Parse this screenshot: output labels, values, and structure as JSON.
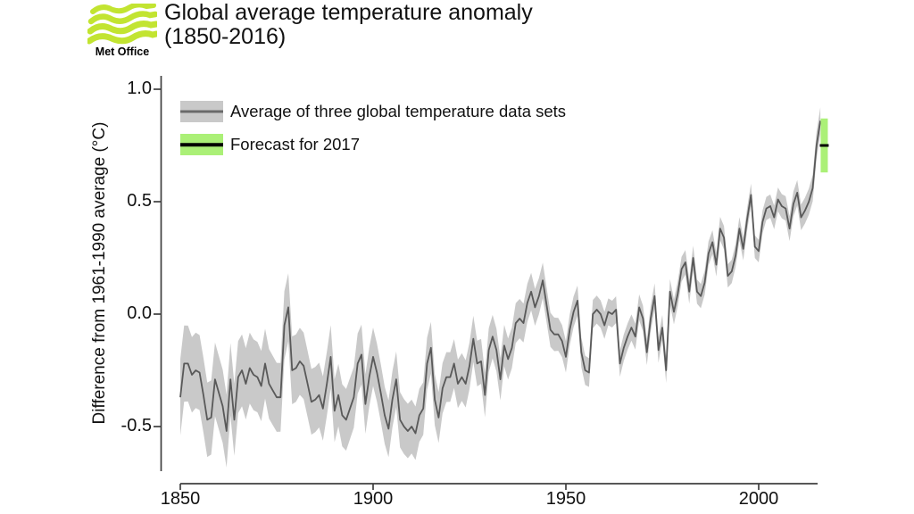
{
  "header": {
    "logo": {
      "brand": "Met Office",
      "icon": "met-office-waves-icon",
      "green": "#c2e431"
    },
    "title_line1": "Global average temperature anomaly",
    "title_line2": "(1850-2016)"
  },
  "chart_data": {
    "type": "line",
    "title": "Global average temperature anomaly (1850-2016)",
    "xlabel": "",
    "ylabel": "Difference from 1961-1990 average (°C)",
    "x_ticks": [
      "1850",
      "1900",
      "1950",
      "2000"
    ],
    "y_ticks": [
      "1.0",
      "0.5",
      "0.0",
      "-0.5"
    ],
    "xlim": [
      1848,
      2018.5
    ],
    "ylim": [
      -0.75,
      1.05
    ],
    "grid": false,
    "axis_color": "#3f3f3f",
    "legend": {
      "position": "top-left",
      "entries": [
        {
          "label": "Average of three global temperature data sets",
          "band_color": "#c9c9c9",
          "line_color": "#6a6a6a"
        },
        {
          "label": "Forecast for 2017",
          "band_color": "#abf077",
          "line_color": "#000000"
        }
      ]
    },
    "series": [
      {
        "name": "Average of three global temperature data sets",
        "start_year": 1850,
        "end_year": 2016,
        "line_color": "#595959",
        "band_color": "#c9c9c9",
        "values": [
          -0.37,
          -0.22,
          -0.22,
          -0.27,
          -0.25,
          -0.26,
          -0.36,
          -0.47,
          -0.46,
          -0.29,
          -0.35,
          -0.41,
          -0.52,
          -0.29,
          -0.47,
          -0.28,
          -0.25,
          -0.31,
          -0.24,
          -0.27,
          -0.28,
          -0.32,
          -0.22,
          -0.31,
          -0.34,
          -0.37,
          -0.37,
          -0.05,
          0.03,
          -0.25,
          -0.24,
          -0.21,
          -0.23,
          -0.31,
          -0.39,
          -0.38,
          -0.36,
          -0.42,
          -0.31,
          -0.19,
          -0.43,
          -0.36,
          -0.45,
          -0.47,
          -0.42,
          -0.37,
          -0.22,
          -0.18,
          -0.4,
          -0.28,
          -0.19,
          -0.26,
          -0.35,
          -0.45,
          -0.51,
          -0.38,
          -0.29,
          -0.47,
          -0.5,
          -0.52,
          -0.5,
          -0.53,
          -0.45,
          -0.42,
          -0.22,
          -0.15,
          -0.38,
          -0.46,
          -0.33,
          -0.28,
          -0.28,
          -0.22,
          -0.31,
          -0.28,
          -0.31,
          -0.23,
          -0.11,
          -0.22,
          -0.21,
          -0.36,
          -0.16,
          -0.1,
          -0.16,
          -0.29,
          -0.14,
          -0.2,
          -0.15,
          -0.04,
          -0.02,
          -0.04,
          0.05,
          0.1,
          0.03,
          0.08,
          0.15,
          0.04,
          -0.07,
          -0.09,
          -0.09,
          -0.12,
          -0.19,
          -0.07,
          0.01,
          0.06,
          -0.17,
          -0.25,
          -0.26,
          0.0,
          0.02,
          0.0,
          -0.05,
          0.01,
          0.0,
          0.02,
          -0.22,
          -0.15,
          -0.1,
          -0.06,
          -0.1,
          0.03,
          -0.02,
          -0.17,
          -0.02,
          0.08,
          -0.16,
          -0.06,
          -0.25,
          0.1,
          0.01,
          0.09,
          0.2,
          0.23,
          0.1,
          0.25,
          0.1,
          0.08,
          0.14,
          0.27,
          0.32,
          0.22,
          0.38,
          0.34,
          0.17,
          0.19,
          0.26,
          0.38,
          0.29,
          0.42,
          0.53,
          0.3,
          0.28,
          0.41,
          0.47,
          0.48,
          0.43,
          0.51,
          0.48,
          0.47,
          0.38,
          0.49,
          0.54,
          0.43,
          0.46,
          0.5,
          0.56,
          0.75,
          0.86
        ],
        "uncertainty_breakpoints": {
          "years": [
            1850,
            1880,
            1900,
            1920,
            1940,
            1950,
            1960,
            1980,
            2000,
            2016
          ],
          "half_widths": [
            0.17,
            0.15,
            0.13,
            0.11,
            0.085,
            0.07,
            0.06,
            0.055,
            0.05,
            0.06
          ]
        }
      }
    ],
    "forecast": {
      "label": "Forecast for 2017",
      "year": 2017,
      "central": 0.75,
      "lower": 0.63,
      "upper": 0.87,
      "band_color": "#abf077",
      "line_color": "#000000"
    }
  }
}
